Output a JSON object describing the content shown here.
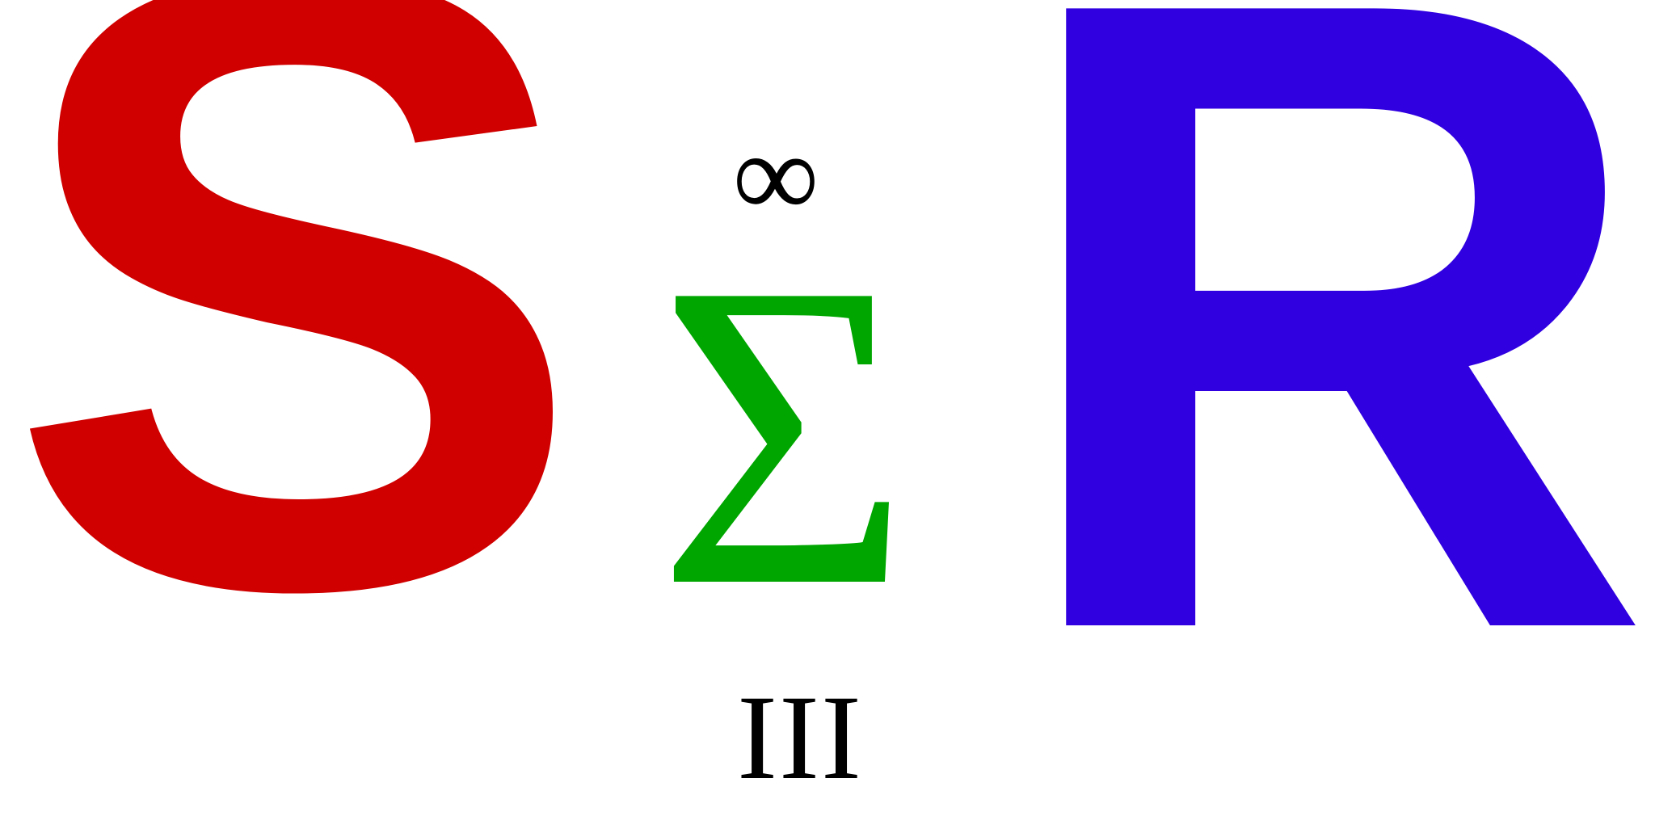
{
  "logo": {
    "s_letter": "S",
    "sigma_letter": "Σ",
    "infinity_symbol": "∞",
    "roman_numeral": "III",
    "r_letter": "R"
  },
  "colors": {
    "s_letter": "#d00000",
    "sigma_letter": "#00a600",
    "infinity_symbol": "#000000",
    "roman_numeral": "#000000",
    "r_letter": "#3000e0"
  }
}
